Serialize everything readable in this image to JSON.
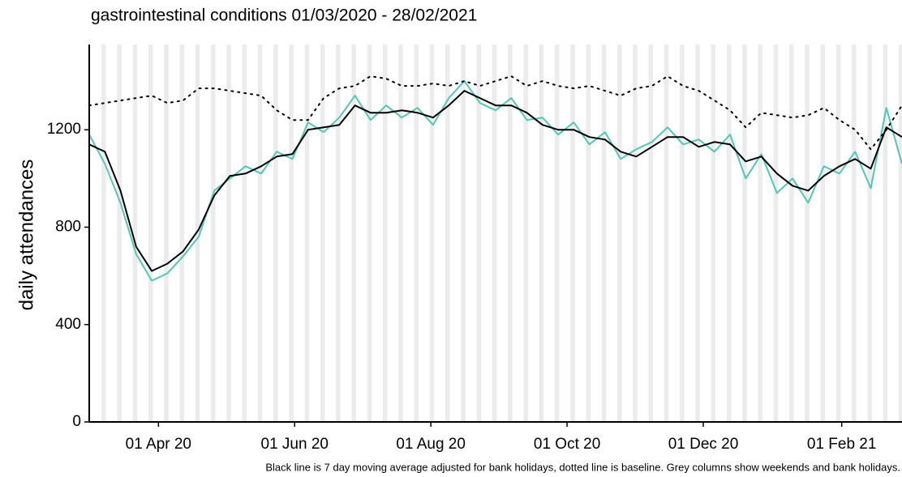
{
  "chart_data": {
    "type": "line",
    "title": "gastrointestinal conditions 01/03/2020 - 28/02/2021",
    "y_label": "daily attendances",
    "footnote": "Black line is 7 day moving average adjusted for bank holidays, dotted line is baseline. Grey columns show weekends and bank holidays.",
    "x": [
      "2020-03-01",
      "2020-03-08",
      "2020-03-15",
      "2020-03-22",
      "2020-03-29",
      "2020-04-05",
      "2020-04-12",
      "2020-04-19",
      "2020-04-26",
      "2020-05-03",
      "2020-05-10",
      "2020-05-17",
      "2020-05-24",
      "2020-05-31",
      "2020-06-07",
      "2020-06-14",
      "2020-06-21",
      "2020-06-28",
      "2020-07-05",
      "2020-07-12",
      "2020-07-19",
      "2020-07-26",
      "2020-08-02",
      "2020-08-09",
      "2020-08-16",
      "2020-08-23",
      "2020-08-30",
      "2020-09-06",
      "2020-09-13",
      "2020-09-20",
      "2020-09-27",
      "2020-10-04",
      "2020-10-11",
      "2020-10-18",
      "2020-10-25",
      "2020-11-01",
      "2020-11-08",
      "2020-11-15",
      "2020-11-22",
      "2020-11-29",
      "2020-12-06",
      "2020-12-13",
      "2020-12-20",
      "2020-12-27",
      "2021-01-03",
      "2021-01-10",
      "2021-01-17",
      "2021-01-24",
      "2021-01-31",
      "2021-02-07",
      "2021-02-14",
      "2021-02-21",
      "2021-02-28"
    ],
    "series": [
      {
        "name": "daily",
        "color": "#4fc9b5",
        "style": "solid",
        "width": 2,
        "values": [
          1180,
          1060,
          900,
          690,
          580,
          610,
          680,
          760,
          950,
          1000,
          1050,
          1020,
          1110,
          1080,
          1230,
          1190,
          1250,
          1340,
          1240,
          1300,
          1250,
          1290,
          1220,
          1330,
          1400,
          1310,
          1280,
          1330,
          1240,
          1250,
          1180,
          1230,
          1140,
          1190,
          1080,
          1120,
          1150,
          1210,
          1140,
          1160,
          1110,
          1180,
          1000,
          1100,
          940,
          1000,
          900,
          1050,
          1020,
          1110,
          960,
          1290,
          1060
        ]
      },
      {
        "name": "moving average",
        "color": "#000000",
        "style": "solid",
        "width": 2,
        "values": [
          1140,
          1110,
          950,
          720,
          620,
          650,
          700,
          790,
          930,
          1010,
          1020,
          1050,
          1090,
          1100,
          1200,
          1210,
          1220,
          1300,
          1270,
          1270,
          1280,
          1270,
          1250,
          1300,
          1360,
          1330,
          1300,
          1300,
          1270,
          1220,
          1200,
          1200,
          1170,
          1160,
          1110,
          1090,
          1130,
          1170,
          1170,
          1130,
          1150,
          1140,
          1070,
          1090,
          1020,
          970,
          950,
          1010,
          1050,
          1080,
          1040,
          1210,
          1170
        ]
      },
      {
        "name": "baseline",
        "color": "#000000",
        "style": "dotted",
        "width": 2,
        "values": [
          1300,
          1310,
          1320,
          1330,
          1340,
          1310,
          1320,
          1370,
          1370,
          1360,
          1350,
          1340,
          1280,
          1240,
          1240,
          1330,
          1370,
          1380,
          1420,
          1410,
          1380,
          1380,
          1390,
          1380,
          1400,
          1380,
          1400,
          1420,
          1380,
          1400,
          1380,
          1370,
          1380,
          1360,
          1340,
          1370,
          1380,
          1420,
          1380,
          1360,
          1320,
          1280,
          1210,
          1270,
          1260,
          1250,
          1260,
          1290,
          1240,
          1200,
          1120,
          1200,
          1300
        ]
      }
    ],
    "xlim": [
      "2020-03-01",
      "2021-02-28"
    ],
    "xticks": [
      {
        "value": "2020-04-01",
        "label": "01 Apr 20"
      },
      {
        "value": "2020-06-01",
        "label": "01 Jun 20"
      },
      {
        "value": "2020-08-01",
        "label": "01 Aug 20"
      },
      {
        "value": "2020-10-01",
        "label": "01 Oct 20"
      },
      {
        "value": "2020-12-01",
        "label": "01 Dec 20"
      },
      {
        "value": "2021-02-01",
        "label": "01 Feb 21"
      }
    ],
    "ylim": [
      0,
      1550
    ],
    "yticks": [
      0,
      400,
      800,
      1200
    ],
    "weekend_shading": true
  }
}
